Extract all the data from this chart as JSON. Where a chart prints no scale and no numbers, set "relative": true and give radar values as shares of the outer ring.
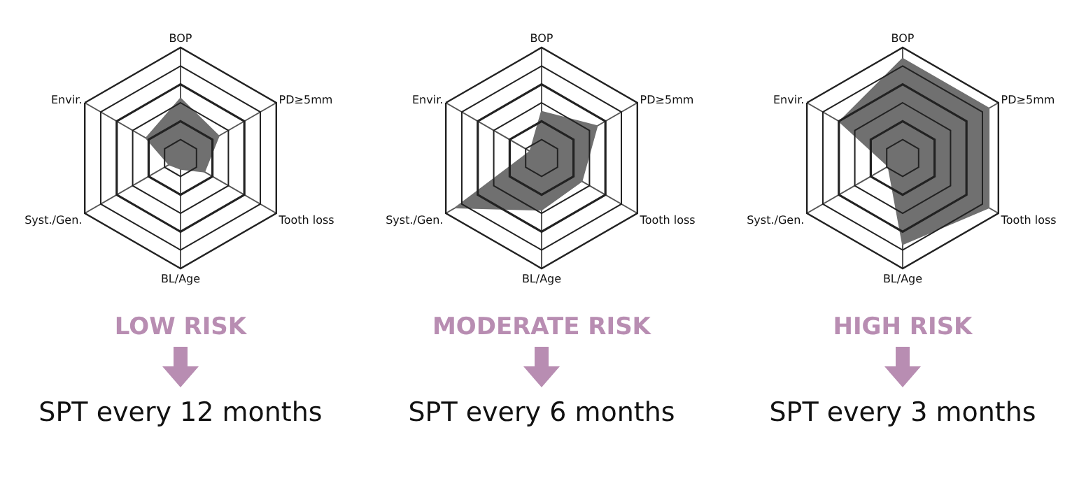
{
  "chart_data": [
    {
      "type": "radar",
      "title": "LOW RISK",
      "annotations": [
        "SPT every 12 months"
      ],
      "categories": [
        "BOP",
        "PD≥5mm",
        "Tooth loss",
        "BL/Age",
        "Syst./Gen.",
        "Envir."
      ],
      "relative": true,
      "grid": true,
      "series": [
        {
          "color": "#707070",
          "values": [
            0.54,
            0.4,
            0.25,
            0.1,
            0.12,
            0.36
          ]
        }
      ]
    },
    {
      "type": "radar",
      "title": "MODERATE RISK",
      "annotations": [
        "SPT every 6 months"
      ],
      "categories": [
        "BOP",
        "PD≥5mm",
        "Tooth loss",
        "BL/Age",
        "Syst./Gen.",
        "Envir."
      ],
      "relative": true,
      "grid": true,
      "series": [
        {
          "color": "#707070",
          "values": [
            0.42,
            0.58,
            0.42,
            0.47,
            0.9,
            0.12
          ]
        }
      ]
    },
    {
      "type": "radar",
      "title": "HIGH RISK",
      "annotations": [
        "SPT every 3 months"
      ],
      "categories": [
        "BOP",
        "PD≥5mm",
        "Tooth loss",
        "BL/Age",
        "Syst./Gen.",
        "Envir."
      ],
      "relative": true,
      "grid": true,
      "series": [
        {
          "color": "#707070",
          "values": [
            0.9,
            0.9,
            0.9,
            0.78,
            0.15,
            0.66
          ]
        }
      ]
    }
  ]
}
